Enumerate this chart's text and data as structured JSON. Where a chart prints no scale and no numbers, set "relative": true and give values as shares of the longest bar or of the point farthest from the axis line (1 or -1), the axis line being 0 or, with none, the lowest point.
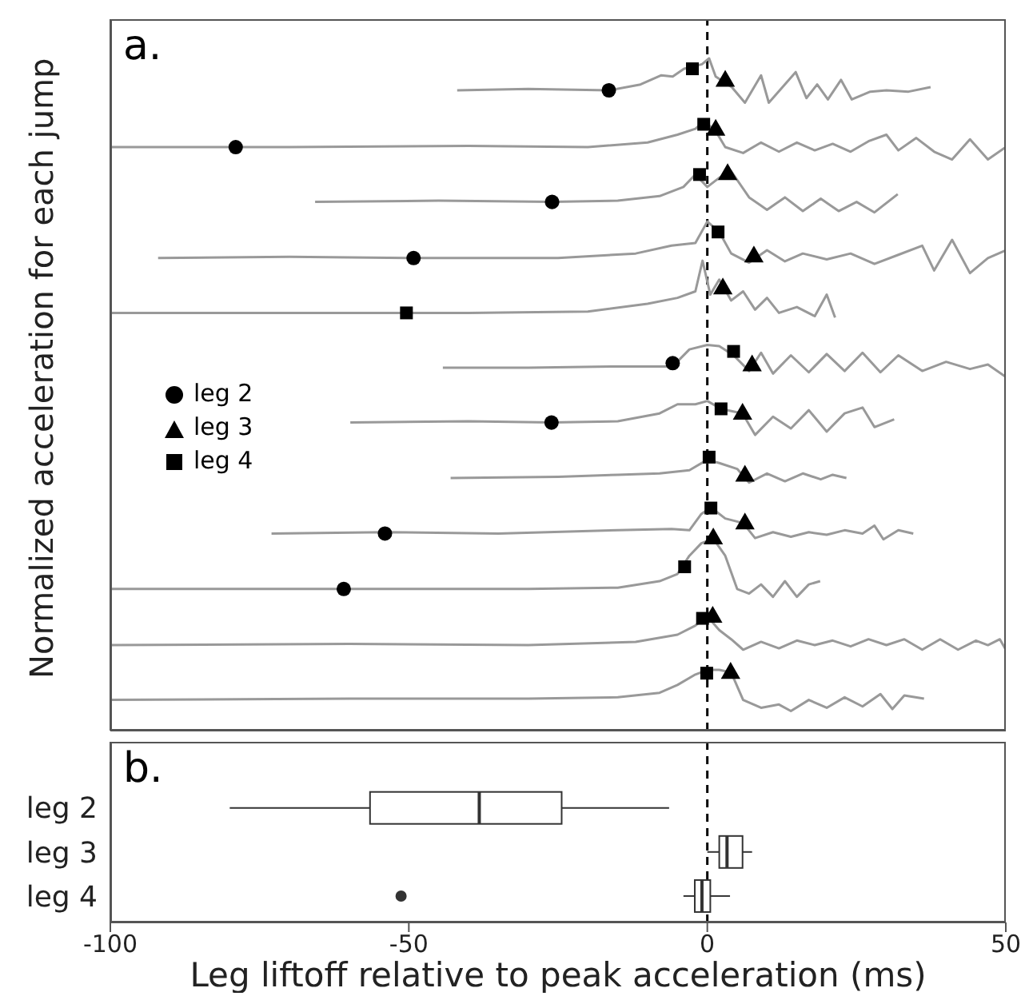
{
  "chart_data": [
    {
      "type": "line",
      "ylabel": "Normalized acceleration for each jump",
      "annotations": [
        "a."
      ],
      "relative": true,
      "xlim": [
        -100,
        50
      ],
      "xticks": [
        -100,
        -50,
        0,
        50
      ],
      "tick_labels": false,
      "legend": "left",
      "ref_lines": [
        {
          "axis": "x",
          "value": 0,
          "line_style": "dashed",
          "color": "#000000"
        }
      ],
      "series": [
        {
          "type": "line",
          "color": "#999999",
          "x": [
            -41.9,
            -30,
            -16.5,
            -11.2,
            -7.7,
            -5.8,
            -3.9,
            -0.9,
            0.3,
            1.4,
            4.1,
            6.3,
            9.0,
            10.3,
            14.8,
            16.6,
            18.4,
            20.2,
            22.4,
            24.2,
            27.3,
            30,
            33.7,
            37.4
          ],
          "values": [
            0.951,
            0.953,
            0.951,
            0.96,
            0.974,
            0.972,
            0.984,
            0.991,
            1.0,
            0.972,
            0.956,
            0.932,
            0.974,
            0.932,
            0.979,
            0.939,
            0.96,
            0.937,
            0.967,
            0.937,
            0.949,
            0.951,
            0.949,
            0.956
          ]
        },
        {
          "type": "line",
          "color": "#999999",
          "x": [
            -100,
            -70,
            -40,
            -20,
            -10,
            -5,
            -2,
            -0.5,
            1.5,
            3,
            6,
            9,
            12,
            15,
            18,
            21,
            24,
            27,
            30,
            32,
            35,
            38,
            41,
            44,
            47,
            50
          ],
          "values": [
            0.864,
            0.864,
            0.866,
            0.864,
            0.871,
            0.883,
            0.892,
            0.904,
            0.887,
            0.864,
            0.855,
            0.871,
            0.857,
            0.871,
            0.859,
            0.869,
            0.857,
            0.873,
            0.883,
            0.859,
            0.878,
            0.857,
            0.845,
            0.876,
            0.845,
            0.864
          ]
        },
        {
          "type": "line",
          "color": "#999999",
          "x": [
            -65.7,
            -45,
            -26,
            -15,
            -8,
            -4,
            -2,
            0,
            2,
            4,
            7,
            10,
            13,
            16,
            19,
            22,
            25,
            28,
            31.9
          ],
          "values": [
            0.78,
            0.782,
            0.78,
            0.782,
            0.789,
            0.803,
            0.822,
            0.803,
            0.817,
            0.827,
            0.787,
            0.768,
            0.787,
            0.766,
            0.785,
            0.766,
            0.78,
            0.764,
            0.792
          ]
        },
        {
          "type": "line",
          "color": "#999999",
          "x": [
            -92,
            -70,
            -49.2,
            -25,
            -12,
            -6,
            -2,
            0,
            2,
            4,
            7,
            10,
            13,
            16,
            20,
            24,
            28,
            32,
            36,
            38,
            41,
            44,
            47,
            50
          ],
          "values": [
            0.694,
            0.696,
            0.694,
            0.694,
            0.701,
            0.713,
            0.717,
            0.75,
            0.734,
            0.701,
            0.687,
            0.706,
            0.689,
            0.701,
            0.692,
            0.701,
            0.685,
            0.699,
            0.713,
            0.675,
            0.722,
            0.671,
            0.694,
            0.706
          ]
        },
        {
          "type": "line",
          "color": "#999999",
          "x": [
            -100,
            -70,
            -40,
            -20,
            -10,
            -5,
            -2,
            -0.8,
            0.5,
            2,
            4,
            6,
            8,
            10,
            12,
            15,
            18,
            20,
            21.4
          ],
          "values": [
            0.61,
            0.61,
            0.61,
            0.612,
            0.624,
            0.633,
            0.643,
            0.69,
            0.638,
            0.661,
            0.629,
            0.643,
            0.615,
            0.633,
            0.61,
            0.619,
            0.605,
            0.638,
            0.603
          ]
        },
        {
          "type": "line",
          "color": "#999999",
          "x": [
            -44.3,
            -30,
            -15,
            -5.8,
            -3,
            0,
            2,
            4.4,
            7,
            9,
            11,
            14,
            17,
            20,
            23,
            26,
            29,
            32,
            36,
            40,
            44,
            47,
            50
          ],
          "values": [
            0.526,
            0.526,
            0.528,
            0.528,
            0.554,
            0.561,
            0.559,
            0.545,
            0.521,
            0.549,
            0.517,
            0.545,
            0.519,
            0.547,
            0.521,
            0.549,
            0.519,
            0.545,
            0.521,
            0.535,
            0.524,
            0.531,
            0.512
          ]
        },
        {
          "type": "line",
          "color": "#999999",
          "x": [
            -59.8,
            -40,
            -26.1,
            -15,
            -8,
            -5,
            -2,
            0,
            2.3,
            5.9,
            8,
            11,
            14,
            17,
            20,
            23,
            26,
            28,
            31.3
          ],
          "values": [
            0.442,
            0.444,
            0.442,
            0.444,
            0.456,
            0.47,
            0.47,
            0.475,
            0.463,
            0.456,
            0.423,
            0.451,
            0.433,
            0.461,
            0.428,
            0.456,
            0.465,
            0.435,
            0.447
          ]
        },
        {
          "type": "line",
          "color": "#999999",
          "x": [
            -43,
            -25,
            -15,
            -8,
            -3,
            0,
            2,
            5,
            7,
            10,
            13,
            16,
            19,
            21,
            23.3
          ],
          "values": [
            0.357,
            0.359,
            0.362,
            0.364,
            0.369,
            0.385,
            0.38,
            0.371,
            0.35,
            0.364,
            0.352,
            0.364,
            0.355,
            0.362,
            0.357
          ]
        },
        {
          "type": "line",
          "color": "#999999",
          "x": [
            -73,
            -54,
            -35,
            -15,
            -6,
            -3,
            -1,
            0.6,
            3,
            6,
            8,
            11,
            14,
            17,
            20,
            23,
            26,
            28,
            29.5,
            32,
            34.5
          ],
          "values": [
            0.272,
            0.274,
            0.272,
            0.277,
            0.279,
            0.277,
            0.302,
            0.312,
            0.295,
            0.288,
            0.265,
            0.274,
            0.267,
            0.274,
            0.27,
            0.277,
            0.272,
            0.284,
            0.263,
            0.277,
            0.272
          ]
        },
        {
          "type": "line",
          "color": "#999999",
          "x": [
            -100,
            -70,
            -60.9,
            -30,
            -15,
            -8,
            -5,
            -3,
            -1,
            1,
            3,
            5,
            7,
            9,
            11,
            13,
            15,
            17,
            18.9
          ],
          "values": [
            0.187,
            0.187,
            0.187,
            0.187,
            0.189,
            0.199,
            0.21,
            0.238,
            0.257,
            0.264,
            0.238,
            0.187,
            0.18,
            0.194,
            0.175,
            0.199,
            0.175,
            0.194,
            0.199
          ]
        },
        {
          "type": "line",
          "color": "#999999",
          "x": [
            -100,
            -60,
            -30,
            -12,
            -5,
            -2,
            0,
            2,
            4,
            6,
            9,
            12,
            15,
            18,
            21,
            24,
            27,
            30,
            33,
            36,
            39,
            42,
            45,
            47,
            49,
            50
          ],
          "values": [
            0.101,
            0.103,
            0.101,
            0.106,
            0.117,
            0.131,
            0.145,
            0.124,
            0.11,
            0.094,
            0.106,
            0.096,
            0.108,
            0.101,
            0.108,
            0.099,
            0.11,
            0.101,
            0.11,
            0.094,
            0.11,
            0.094,
            0.108,
            0.101,
            0.11,
            0.094
          ]
        },
        {
          "type": "line",
          "color": "#999999",
          "x": [
            -100,
            -60,
            -30,
            -15,
            -8,
            -5,
            -2,
            0,
            2,
            4,
            6,
            9,
            12,
            14,
            17,
            20,
            23,
            26,
            29,
            31,
            33,
            36.3
          ],
          "values": [
            0.017,
            0.019,
            0.019,
            0.021,
            0.028,
            0.04,
            0.056,
            0.063,
            0.063,
            0.059,
            0.017,
            0.005,
            0.01,
            0.0,
            0.017,
            0.005,
            0.021,
            0.007,
            0.026,
            0.003,
            0.024,
            0.019
          ]
        },
        {
          "type": "scatter",
          "name": "leg 2",
          "color": "#000000",
          "marker": "circle",
          "x": [
            -16.5,
            -79,
            -26,
            -49.2,
            -5.8,
            -26.1,
            -54,
            -60.9
          ],
          "values": [
            0.951,
            0.864,
            0.78,
            0.694,
            0.533,
            0.442,
            0.272,
            0.187
          ]
        },
        {
          "type": "scatter",
          "name": "leg 3",
          "color": "#000000",
          "marker": "triangle",
          "x": [
            3.0,
            1.4,
            3.4,
            7.8,
            2.6,
            7.5,
            5.9,
            6.3,
            6.3,
            1.0,
            0.9,
            3.9
          ],
          "values": [
            0.965,
            0.89,
            0.822,
            0.696,
            0.647,
            0.529,
            0.455,
            0.36,
            0.287,
            0.264,
            0.144,
            0.058
          ]
        },
        {
          "type": "scatter",
          "name": "leg 4",
          "color": "#000000",
          "marker": "square",
          "x": [
            -2.5,
            -0.6,
            -1.3,
            1.8,
            -50.4,
            4.4,
            2.3,
            0.3,
            0.6,
            -3.8,
            -0.8,
            -0.1
          ],
          "values": [
            0.984,
            0.899,
            0.822,
            0.734,
            0.61,
            0.551,
            0.463,
            0.389,
            0.311,
            0.221,
            0.142,
            0.058
          ]
        }
      ]
    },
    {
      "type": "box",
      "orientation": "horizontal",
      "xlabel": "Leg liftoff relative to peak acceleration (ms)",
      "annotations": [
        "b."
      ],
      "categories": [
        "leg 2",
        "leg 3",
        "leg 4"
      ],
      "xlim": [
        -100,
        50
      ],
      "xticks": [
        -100,
        -50,
        0,
        50
      ],
      "ref_lines": [
        {
          "axis": "x",
          "value": 0,
          "line_style": "dashed",
          "color": "#000000"
        }
      ],
      "boxes": [
        {
          "low": -80,
          "q1": -56.5,
          "median": -38.2,
          "q3": -24.4,
          "high": -6.4
        },
        {
          "low": 0,
          "q1": 2.0,
          "median": 3.3,
          "q3": 5.9,
          "high": 7.5
        },
        {
          "low": -4.0,
          "q1": -2.1,
          "median": -0.9,
          "q3": 0.5,
          "high": 3.8,
          "outliers": [
            -51.3
          ]
        }
      ]
    }
  ]
}
